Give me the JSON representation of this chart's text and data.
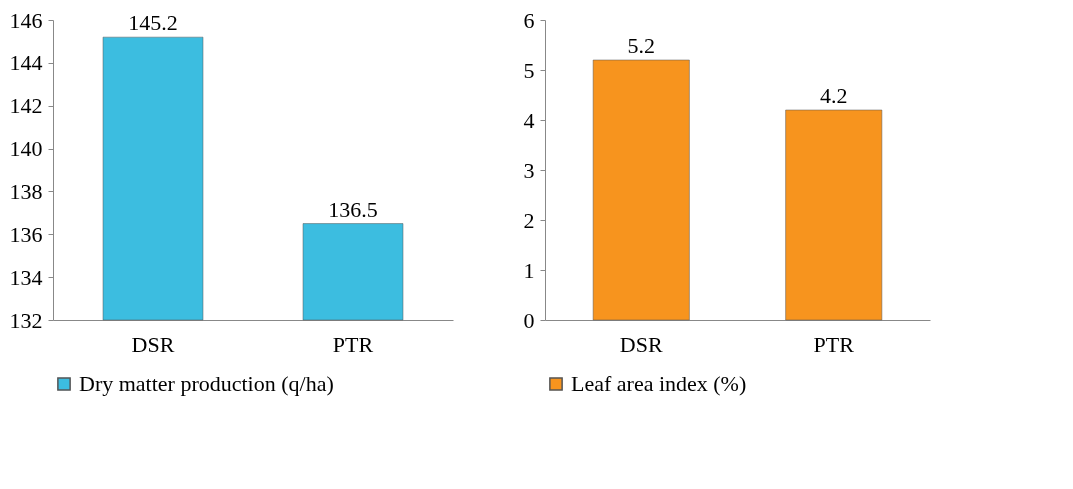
{
  "chart_data": [
    {
      "type": "bar",
      "categories": [
        "DSR",
        "PTR"
      ],
      "series": [
        {
          "name": "Dry matter production (q/ha)",
          "color": "#3cbde0",
          "values": [
            145.2,
            136.5
          ]
        }
      ],
      "ylim": [
        132,
        146
      ],
      "yticks": [
        132,
        134,
        136,
        138,
        140,
        142,
        144,
        146
      ],
      "data_labels": true,
      "legend": "bottom"
    },
    {
      "type": "bar",
      "categories": [
        "DSR",
        "PTR"
      ],
      "series": [
        {
          "name": "Leaf area index (%)",
          "color": "#f7941e",
          "values": [
            5.2,
            4.2
          ]
        }
      ],
      "ylim": [
        0,
        6
      ],
      "yticks": [
        0,
        1,
        2,
        3,
        4,
        5,
        6
      ],
      "data_labels": true,
      "legend": "bottom"
    }
  ]
}
